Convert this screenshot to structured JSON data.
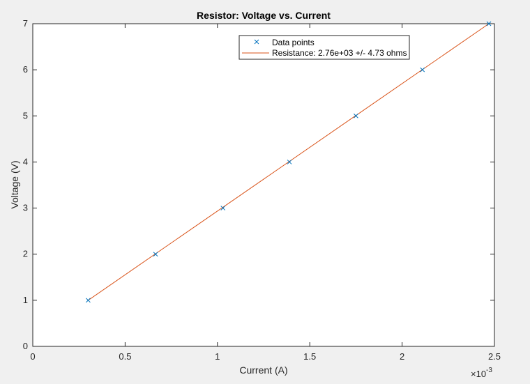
{
  "chart_data": {
    "type": "scatter",
    "title": "Resistor: Voltage vs. Current",
    "xlabel": "Current (A)",
    "ylabel": "Voltage (V)",
    "x_exponent_prefix": "×10",
    "x_exponent_power": "-3",
    "xlim": [
      0,
      2.5
    ],
    "ylim": [
      0,
      7
    ],
    "x_ticks": [
      0,
      0.5,
      1,
      1.5,
      2,
      2.5
    ],
    "x_tick_labels": [
      "0",
      "0.5",
      "1",
      "1.5",
      "2",
      "2.5"
    ],
    "y_ticks": [
      0,
      1,
      2,
      3,
      4,
      5,
      6,
      7
    ],
    "y_tick_labels": [
      "0",
      "1",
      "2",
      "3",
      "4",
      "5",
      "6",
      "7"
    ],
    "x_scale_note": "x tick values are in units of 1e-3 A",
    "grid": false,
    "legend_position": "top-center",
    "series": [
      {
        "name": "Data points",
        "kind": "markers",
        "marker": "x",
        "color": "#0072bd",
        "x": [
          0.3,
          0.665,
          1.03,
          1.39,
          1.75,
          2.11,
          2.47
        ],
        "y": [
          1,
          2,
          3,
          4,
          5,
          6,
          7
        ]
      },
      {
        "name": "Resistance: 2.76e+03 +/- 4.73 ohms",
        "kind": "line",
        "color": "#d95319",
        "x": [
          0.3,
          2.47
        ],
        "y": [
          1,
          7
        ]
      }
    ]
  },
  "colors": {
    "figure_background": "#f0f0f0",
    "axes_background": "#ffffff",
    "data_points": "#0072bd",
    "fit_line": "#d95319"
  }
}
